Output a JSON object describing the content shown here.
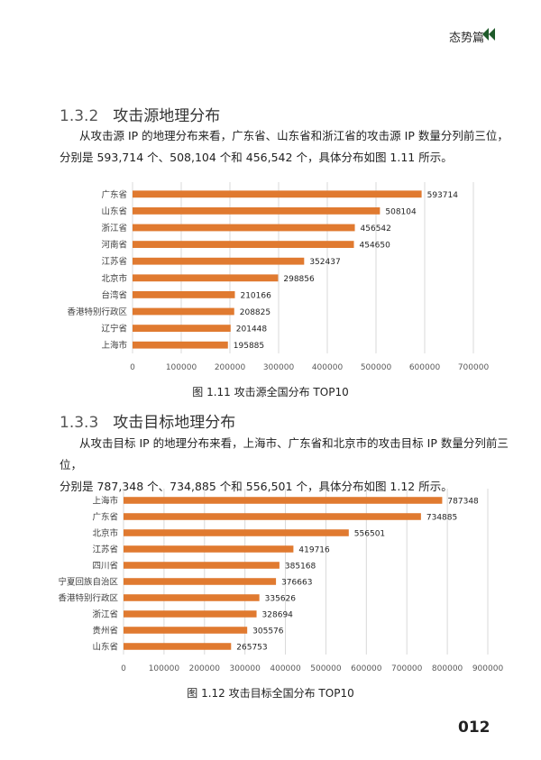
{
  "header": {
    "title": "态势篇",
    "chevron_icon": "double-chevron-left-icon",
    "accent_color": "#1e5a2a"
  },
  "section1": {
    "number": "1.3.2",
    "title": "攻击源地理分布",
    "paragraph_line1": "从攻击源 IP 的地理分布来看，广东省、山东省和浙江省的攻击源 IP 数量分列前三位，",
    "paragraph_line2": "分别是 593,714 个、508,104 个和 456,542 个，具体分布如图 1.11 所示。"
  },
  "figure1": {
    "caption": "图 1.11    攻击源全国分布 TOP10"
  },
  "section2": {
    "number": "1.3.3",
    "title": "攻击目标地理分布",
    "paragraph_line1": "从攻击目标 IP 的地理分布来看，上海市、广东省和北京市的攻击目标 IP 数量分列前三位，",
    "paragraph_line2": "分别是 787,348 个、734,885 个和 556,501 个，具体分布如图 1.12 所示。"
  },
  "figure2": {
    "caption": "图 1.12    攻击目标全国分布 TOP10"
  },
  "page_number": "012",
  "chart_data": [
    {
      "type": "bar",
      "orientation": "horizontal",
      "bar_color": "#e07a30",
      "categories": [
        "广东省",
        "山东省",
        "浙江省",
        "河南省",
        "江苏省",
        "北京市",
        "台湾省",
        "香港特别行政区",
        "辽宁省",
        "上海市"
      ],
      "values": [
        593714,
        508104,
        456542,
        454650,
        352437,
        298856,
        210166,
        208825,
        201448,
        195885
      ],
      "xticks": [
        0,
        100000,
        200000,
        300000,
        400000,
        500000,
        600000,
        700000
      ],
      "xlim": [
        0,
        700000
      ],
      "grid": true,
      "data_labels": true
    },
    {
      "type": "bar",
      "orientation": "horizontal",
      "bar_color": "#e07a30",
      "categories": [
        "上海市",
        "广东省",
        "北京市",
        "江苏省",
        "四川省",
        "宁夏回族自治区",
        "香港特别行政区",
        "浙江省",
        "贵州省",
        "山东省"
      ],
      "values": [
        787348,
        734885,
        556501,
        419716,
        385168,
        376663,
        335626,
        328694,
        305576,
        265753
      ],
      "xticks": [
        0,
        100000,
        200000,
        300000,
        400000,
        500000,
        600000,
        700000,
        800000,
        900000
      ],
      "xlim": [
        0,
        900000
      ],
      "grid": true,
      "data_labels": true
    }
  ]
}
